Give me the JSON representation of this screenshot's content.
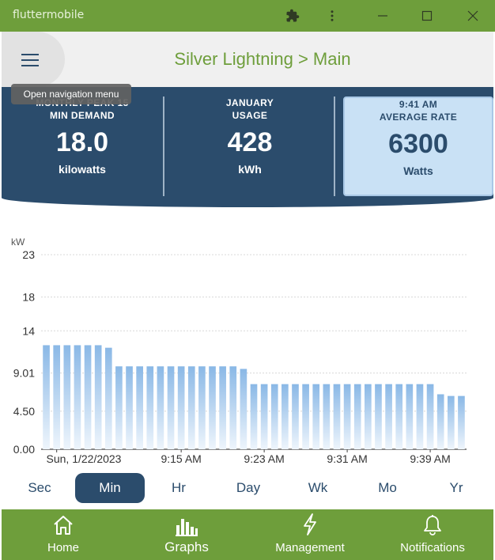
{
  "window": {
    "title": "fluttermobile"
  },
  "appbar": {
    "title": "Silver Lightning > Main",
    "menu_tooltip": "Open navigation menu"
  },
  "stats": [
    {
      "line1": "MONTHLY PEAK 15",
      "line2": "MIN DEMAND",
      "value": "18.0",
      "unit": "kilowatts"
    },
    {
      "line1": "JANUARY",
      "line2": "USAGE",
      "value": "428",
      "unit": "kWh"
    },
    {
      "line1": "9:41 AM",
      "line2": "AVERAGE RATE",
      "value": "6300",
      "unit": "Watts"
    }
  ],
  "chart_data": {
    "type": "bar",
    "ylabel": "kW",
    "y_ticks": [
      "0.00",
      "4.50",
      "9.01",
      "14",
      "18",
      "23"
    ],
    "y_tick_values": [
      0,
      4.5,
      9.01,
      14,
      18,
      23
    ],
    "ylim": [
      0,
      23
    ],
    "x_ticks": [
      "Sun, 1/22/2023",
      "9:15 AM",
      "9:23 AM",
      "9:31 AM",
      "9:39 AM"
    ],
    "x_tick_bar_index": [
      1,
      13,
      21,
      29,
      37
    ],
    "values": [
      12.3,
      12.3,
      12.3,
      12.3,
      12.3,
      12.3,
      12.0,
      9.8,
      9.8,
      9.8,
      9.8,
      9.8,
      9.8,
      9.8,
      9.8,
      9.8,
      9.8,
      9.8,
      9.8,
      9.5,
      7.7,
      7.7,
      7.7,
      7.7,
      7.7,
      7.7,
      7.7,
      7.7,
      7.7,
      7.7,
      7.7,
      7.7,
      7.7,
      7.7,
      7.7,
      7.7,
      7.7,
      7.7,
      6.5,
      6.3,
      6.3
    ],
    "grid": true,
    "bar_color": "#8ab8e6"
  },
  "range_tabs": [
    {
      "label": "Sec",
      "active": false
    },
    {
      "label": "Min",
      "active": true
    },
    {
      "label": "Hr",
      "active": false
    },
    {
      "label": "Day",
      "active": false
    },
    {
      "label": "Wk",
      "active": false
    },
    {
      "label": "Mo",
      "active": false
    },
    {
      "label": "Yr",
      "active": false
    }
  ],
  "nav": [
    {
      "label": "Home",
      "icon": "home-icon",
      "active": false
    },
    {
      "label": "Graphs",
      "icon": "bar-chart-icon",
      "active": true
    },
    {
      "label": "Management",
      "icon": "lightning-icon",
      "active": false
    },
    {
      "label": "Notifications",
      "icon": "bell-icon",
      "active": false
    }
  ],
  "colors": {
    "green": "#6e9e3b",
    "navy": "#2b4c6c",
    "highlight": "#c9e1f5"
  }
}
